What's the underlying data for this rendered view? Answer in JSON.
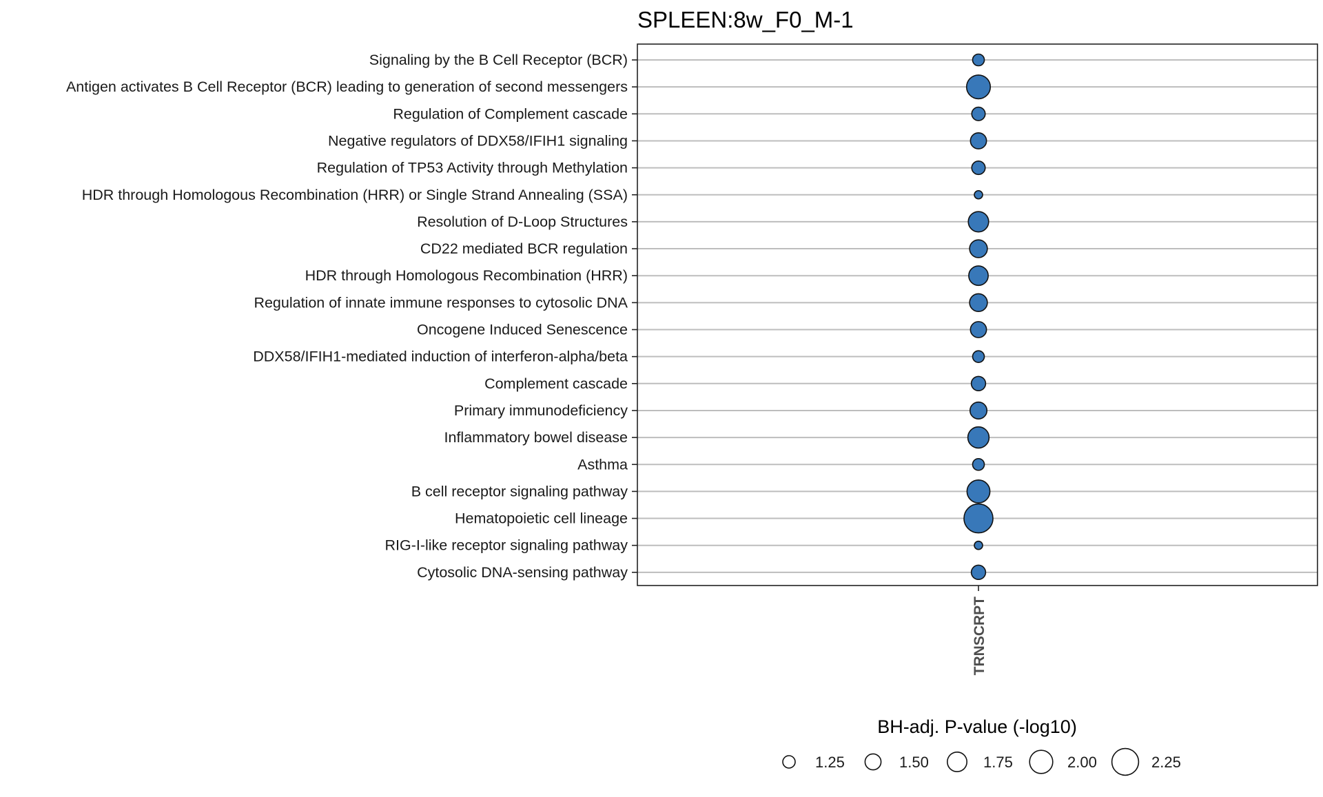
{
  "chart_data": {
    "type": "scatter",
    "title": "SPLEEN:8w_F0_M-1",
    "x_categories": [
      "TRNSCRPT"
    ],
    "y_categories": [
      "Signaling by the B Cell Receptor (BCR)",
      "Antigen activates B Cell Receptor (BCR) leading to generation of second messengers",
      "Regulation of Complement cascade",
      "Negative regulators of DDX58/IFIH1 signaling",
      "Regulation of TP53 Activity through Methylation",
      "HDR through Homologous Recombination (HRR) or Single Strand Annealing (SSA)",
      "Resolution of D-Loop Structures",
      "CD22 mediated BCR regulation",
      "HDR through Homologous Recombination (HRR)",
      "Regulation of innate immune responses to cytosolic DNA",
      "Oncogene Induced Senescence",
      "DDX58/IFIH1-mediated induction of interferon-alpha/beta",
      "Complement cascade",
      "Primary immunodeficiency",
      "Inflammatory bowel disease",
      "Asthma",
      "B cell receptor signaling pathway",
      "Hematopoietic cell lineage",
      "RIG-I-like receptor signaling pathway",
      "Cytosolic DNA-sensing pathway"
    ],
    "series": [
      {
        "x": "TRNSCRPT",
        "size_values": [
          1.35,
          2.05,
          1.45,
          1.6,
          1.45,
          1.15,
          1.85,
          1.7,
          1.8,
          1.7,
          1.6,
          1.35,
          1.5,
          1.65,
          1.9,
          1.35,
          2.0,
          2.35,
          1.15,
          1.5
        ]
      }
    ],
    "fill_color": "#3878b9",
    "legend": {
      "title": "BH-adj. P-value (-log10)",
      "placement": "bottom",
      "values": [
        1.25,
        1.5,
        1.75,
        2.0,
        2.25
      ],
      "labels": [
        "1.25",
        "1.50",
        "1.75",
        "2.00",
        "2.25"
      ]
    },
    "grid": "horizontal"
  }
}
